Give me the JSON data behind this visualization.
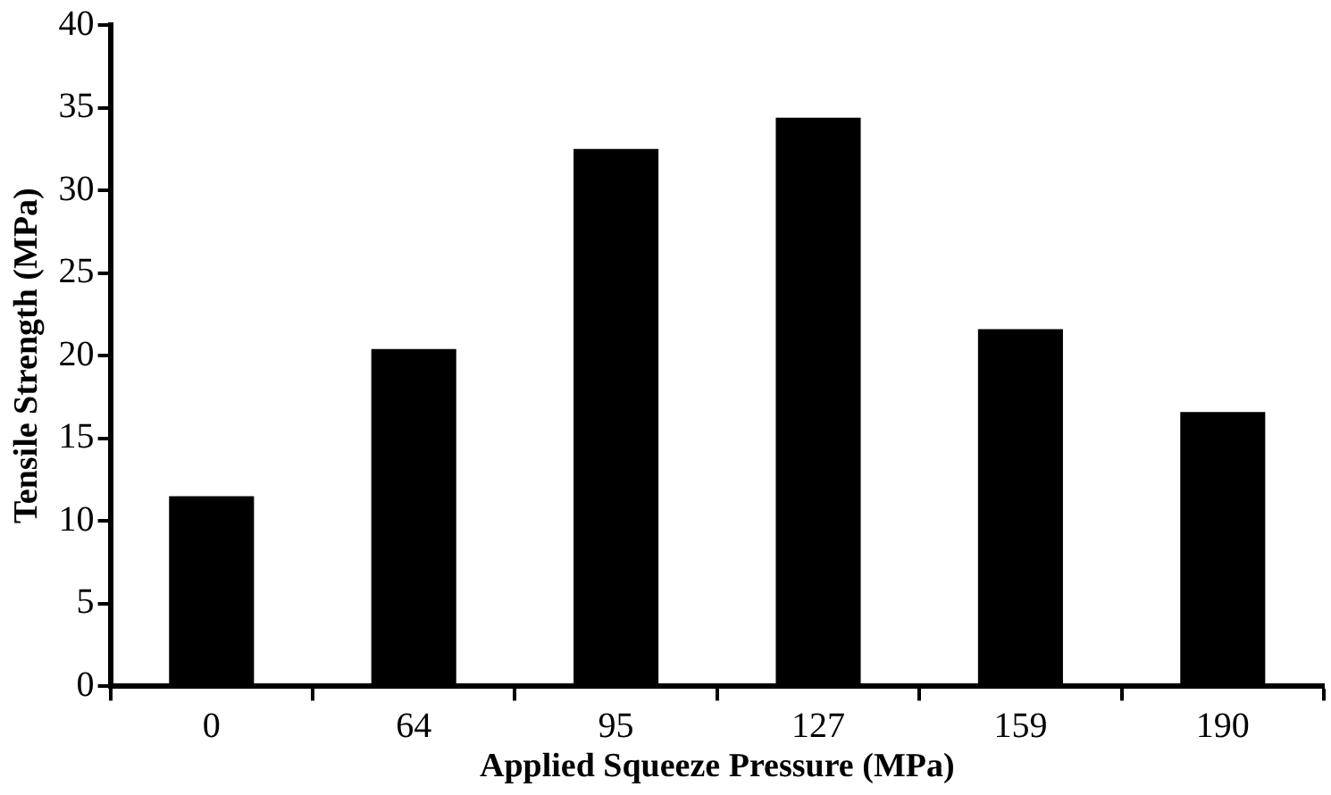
{
  "chart_data": {
    "type": "bar",
    "xlabel": "Applied Squeeze Pressure (MPa)",
    "ylabel": "Tensile Strength (MPa)",
    "categories": [
      "0",
      "64",
      "95",
      "127",
      "159",
      "190"
    ],
    "values": [
      11.5,
      20.4,
      32.5,
      34.4,
      21.6,
      16.6
    ],
    "color": "#000000",
    "ylim": [
      0,
      40
    ],
    "yticks": [
      0,
      5,
      10,
      15,
      20,
      25,
      30,
      35,
      40
    ],
    "grid": false,
    "legend": false
  }
}
